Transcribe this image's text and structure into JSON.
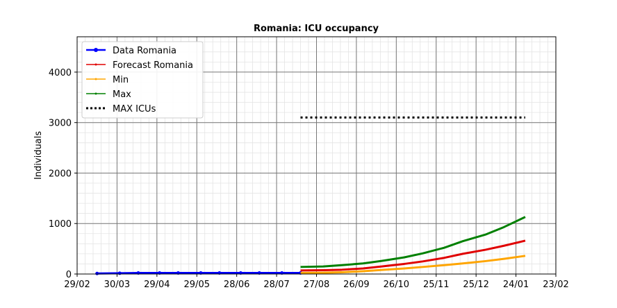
{
  "chart_data": {
    "type": "line",
    "title": "Romania: ICU occupancy",
    "xlabel": "",
    "ylabel": "Individuals",
    "x_ticks": [
      "29/02",
      "30/03",
      "29/04",
      "29/05",
      "28/06",
      "28/07",
      "27/08",
      "26/09",
      "26/10",
      "25/11",
      "25/12",
      "24/01",
      "23/02"
    ],
    "y_ticks": [
      "0",
      "1000",
      "2000",
      "3000",
      "4000"
    ],
    "xlim": [
      "2020-02-29",
      "2021-02-23"
    ],
    "ylim": [
      0,
      4700
    ],
    "grid": true,
    "legend_position": "top-left",
    "series": [
      {
        "name": "Data Romania",
        "color": "#0000ff",
        "style": "solid-markers",
        "x": [
          "2020-03-15",
          "2020-04-01",
          "2020-04-15",
          "2020-05-01",
          "2020-05-15",
          "2020-06-01",
          "2020-06-15",
          "2020-07-01",
          "2020-07-15",
          "2020-08-01",
          "2020-08-15"
        ],
        "y": [
          10,
          15,
          20,
          20,
          20,
          20,
          20,
          20,
          20,
          20,
          20
        ]
      },
      {
        "name": "Forecast Romania",
        "color": "#e00000",
        "style": "solid",
        "x": [
          "2020-08-15",
          "2020-09-01",
          "2020-09-15",
          "2020-10-01",
          "2020-10-15",
          "2020-11-01",
          "2020-11-15",
          "2020-12-01",
          "2020-12-15",
          "2021-01-01",
          "2021-01-15",
          "2021-01-31"
        ],
        "y": [
          70,
          75,
          85,
          110,
          150,
          200,
          250,
          320,
          400,
          480,
          560,
          660
        ]
      },
      {
        "name": "Min",
        "color": "#ffa500",
        "style": "solid",
        "x": [
          "2020-08-15",
          "2020-09-01",
          "2020-09-15",
          "2020-10-01",
          "2020-10-15",
          "2020-11-01",
          "2020-11-15",
          "2020-12-01",
          "2020-12-15",
          "2021-01-01",
          "2021-01-15",
          "2021-01-31"
        ],
        "y": [
          20,
          25,
          35,
          55,
          80,
          110,
          140,
          175,
          210,
          255,
          300,
          360
        ]
      },
      {
        "name": "Max",
        "color": "#008000",
        "style": "solid",
        "x": [
          "2020-08-15",
          "2020-09-01",
          "2020-09-15",
          "2020-10-01",
          "2020-10-15",
          "2020-11-01",
          "2020-11-15",
          "2020-12-01",
          "2020-12-15",
          "2021-01-01",
          "2021-01-15",
          "2021-01-31"
        ],
        "y": [
          140,
          150,
          175,
          210,
          260,
          330,
          410,
          520,
          650,
          780,
          930,
          1130
        ]
      },
      {
        "name": "MAX ICUs",
        "color": "#000000",
        "style": "dotted",
        "x": [
          "2020-08-15",
          "2021-01-31"
        ],
        "y": [
          3100,
          3100
        ]
      }
    ]
  }
}
